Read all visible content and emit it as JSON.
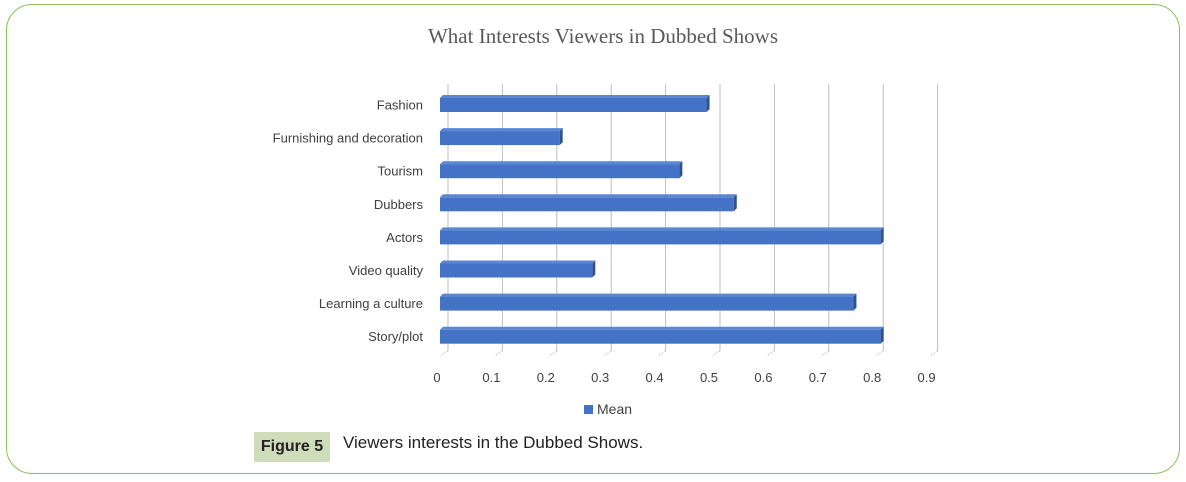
{
  "figure": {
    "label": "Figure 5",
    "caption": "Viewers interests in the Dubbed Shows."
  },
  "colors": {
    "bar": "#4472c4",
    "bar_top": "#5a86d6",
    "bar_side": "#2f528f",
    "frame": "#8dbf5a",
    "caption_label_bg": "#cfdcb9"
  },
  "chart_data": {
    "type": "bar",
    "orientation": "horizontal",
    "title": "What Interests Viewers in Dubbed Shows",
    "xlabel": "",
    "ylabel": "",
    "xlim": [
      0,
      0.9
    ],
    "ticks": [
      "0",
      "0.1",
      "0.2",
      "0.3",
      "0.4",
      "0.5",
      "0.6",
      "0.7",
      "0.8",
      "0.9"
    ],
    "grid": true,
    "legend": "bottom",
    "categories": [
      "Fashion",
      "Furnishing and decoration",
      "Tourism",
      "Dubbers",
      "Actors",
      "Video quality",
      "Learning a culture",
      "Story/plot"
    ],
    "series": [
      {
        "name": "Mean",
        "values": [
          0.49,
          0.22,
          0.44,
          0.54,
          0.81,
          0.28,
          0.76,
          0.81
        ]
      }
    ]
  }
}
